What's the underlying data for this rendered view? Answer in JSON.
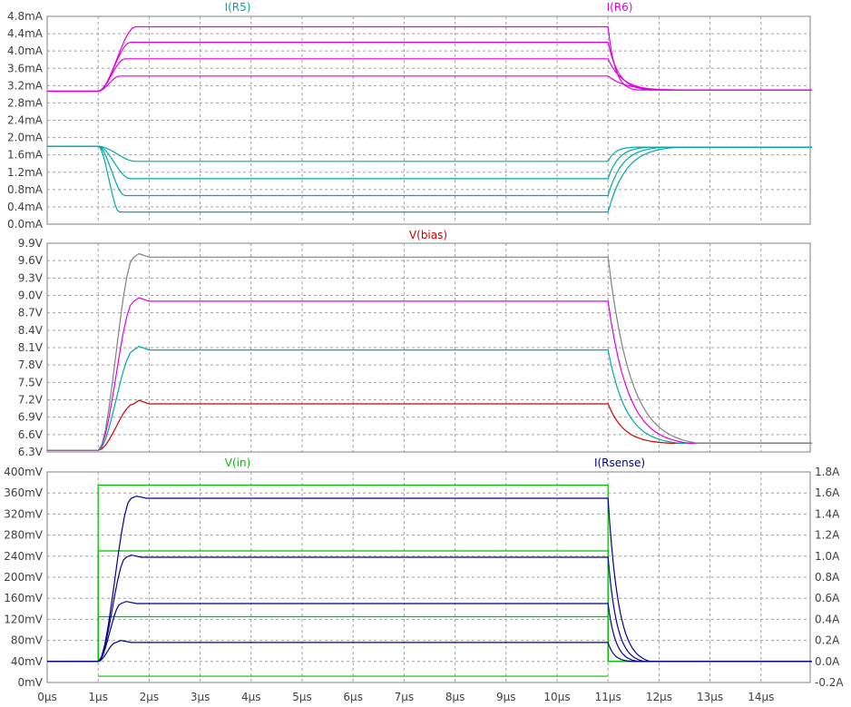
{
  "chart_data": [
    {
      "type": "line",
      "panel": "top",
      "x_unit": "µs",
      "xlim": [
        0,
        15
      ],
      "ylim": [
        0,
        4.8
      ],
      "y_ticks": [
        "0.0mA",
        "0.4mA",
        "0.8mA",
        "1.2mA",
        "1.6mA",
        "2.0mA",
        "2.4mA",
        "2.8mA",
        "3.2mA",
        "3.6mA",
        "4.0mA",
        "4.4mA",
        "4.8mA"
      ],
      "grid": true,
      "legend": [
        {
          "name": "I(R5)",
          "color": "#00a8a8",
          "position": "top-left"
        },
        {
          "name": "I(R6)",
          "color": "#e000e0",
          "position": "top-right"
        }
      ],
      "series": [
        {
          "name": "I(R5)",
          "color": "#00a8a8",
          "base": 1.8,
          "high": [
            0.28,
            0.66,
            1.05,
            1.45
          ],
          "final": 1.78
        },
        {
          "name": "I(R6)",
          "color": "#e000e0",
          "base": 3.07,
          "high": [
            3.42,
            3.82,
            4.2,
            4.56
          ],
          "final": 3.1
        }
      ],
      "pulse": {
        "rise_start": 1.0,
        "rise_end": 1.7,
        "fall_start": 11.0,
        "fall_ends": [
          12.0,
          11.8,
          11.6,
          11.4
        ]
      }
    },
    {
      "type": "line",
      "panel": "middle",
      "x_unit": "µs",
      "xlim": [
        0,
        15
      ],
      "ylim": [
        6.3,
        9.9
      ],
      "y_ticks": [
        "6.3V",
        "6.6V",
        "6.9V",
        "7.2V",
        "7.5V",
        "7.8V",
        "8.1V",
        "8.4V",
        "8.7V",
        "9.0V",
        "9.3V",
        "9.6V",
        "9.9V"
      ],
      "grid": true,
      "legend": [
        {
          "name": "V(bias)",
          "color": "#d00000",
          "position": "top-center"
        }
      ],
      "series": [
        {
          "name": "V(bias)",
          "values": [
            {
              "color": "#d00000",
              "high": 7.13
            },
            {
              "color": "#00a8a8",
              "high": 8.06
            },
            {
              "color": "#e000e0",
              "high": 8.9
            },
            {
              "color": "#808080",
              "high": 9.66
            }
          ],
          "base": 6.33,
          "final": 6.45
        }
      ],
      "pulse": {
        "rise_start": 1.0,
        "rise_end": 1.7,
        "fall_start": 11.0
      }
    },
    {
      "type": "line",
      "panel": "bottom",
      "x_unit": "µs",
      "xlim": [
        0,
        15
      ],
      "ylim_left": [
        0,
        400
      ],
      "ylim_right": [
        -0.2,
        1.8
      ],
      "y_ticks_left": [
        "0mV",
        "40mV",
        "80mV",
        "120mV",
        "160mV",
        "200mV",
        "240mV",
        "280mV",
        "320mV",
        "360mV",
        "400mV"
      ],
      "y_ticks_right": [
        "-0.2A",
        "0.0A",
        "0.2A",
        "0.4A",
        "0.6A",
        "0.8A",
        "1.0A",
        "1.2A",
        "1.4A",
        "1.6A",
        "1.8A"
      ],
      "x_ticks": [
        "0µs",
        "1µs",
        "2µs",
        "3µs",
        "4µs",
        "5µs",
        "6µs",
        "7µs",
        "8µs",
        "9µs",
        "10µs",
        "11µs",
        "12µs",
        "13µs",
        "14µs"
      ],
      "grid": true,
      "legend": [
        {
          "name": "V(in)",
          "color": "#00c000",
          "position": "top-left"
        },
        {
          "name": "I(Rsense)",
          "color": "#00008c",
          "position": "top-right"
        }
      ],
      "series": [
        {
          "name": "V(in)",
          "color": "#00c000",
          "axis": "left",
          "base": 0,
          "pulse_levels": [
            375,
            250,
            125
          ],
          "low_offset": -28,
          "pulse_start": 1.0,
          "pulse_end": 11.0
        },
        {
          "name": "I(Rsense)",
          "color": "#00008c",
          "axis": "right",
          "base": 0.0,
          "high": [
            0.18,
            0.55,
            0.99,
            1.55
          ],
          "rise_start": 1.0,
          "rise_end": 1.7,
          "fall_start": 11.0
        }
      ]
    }
  ]
}
